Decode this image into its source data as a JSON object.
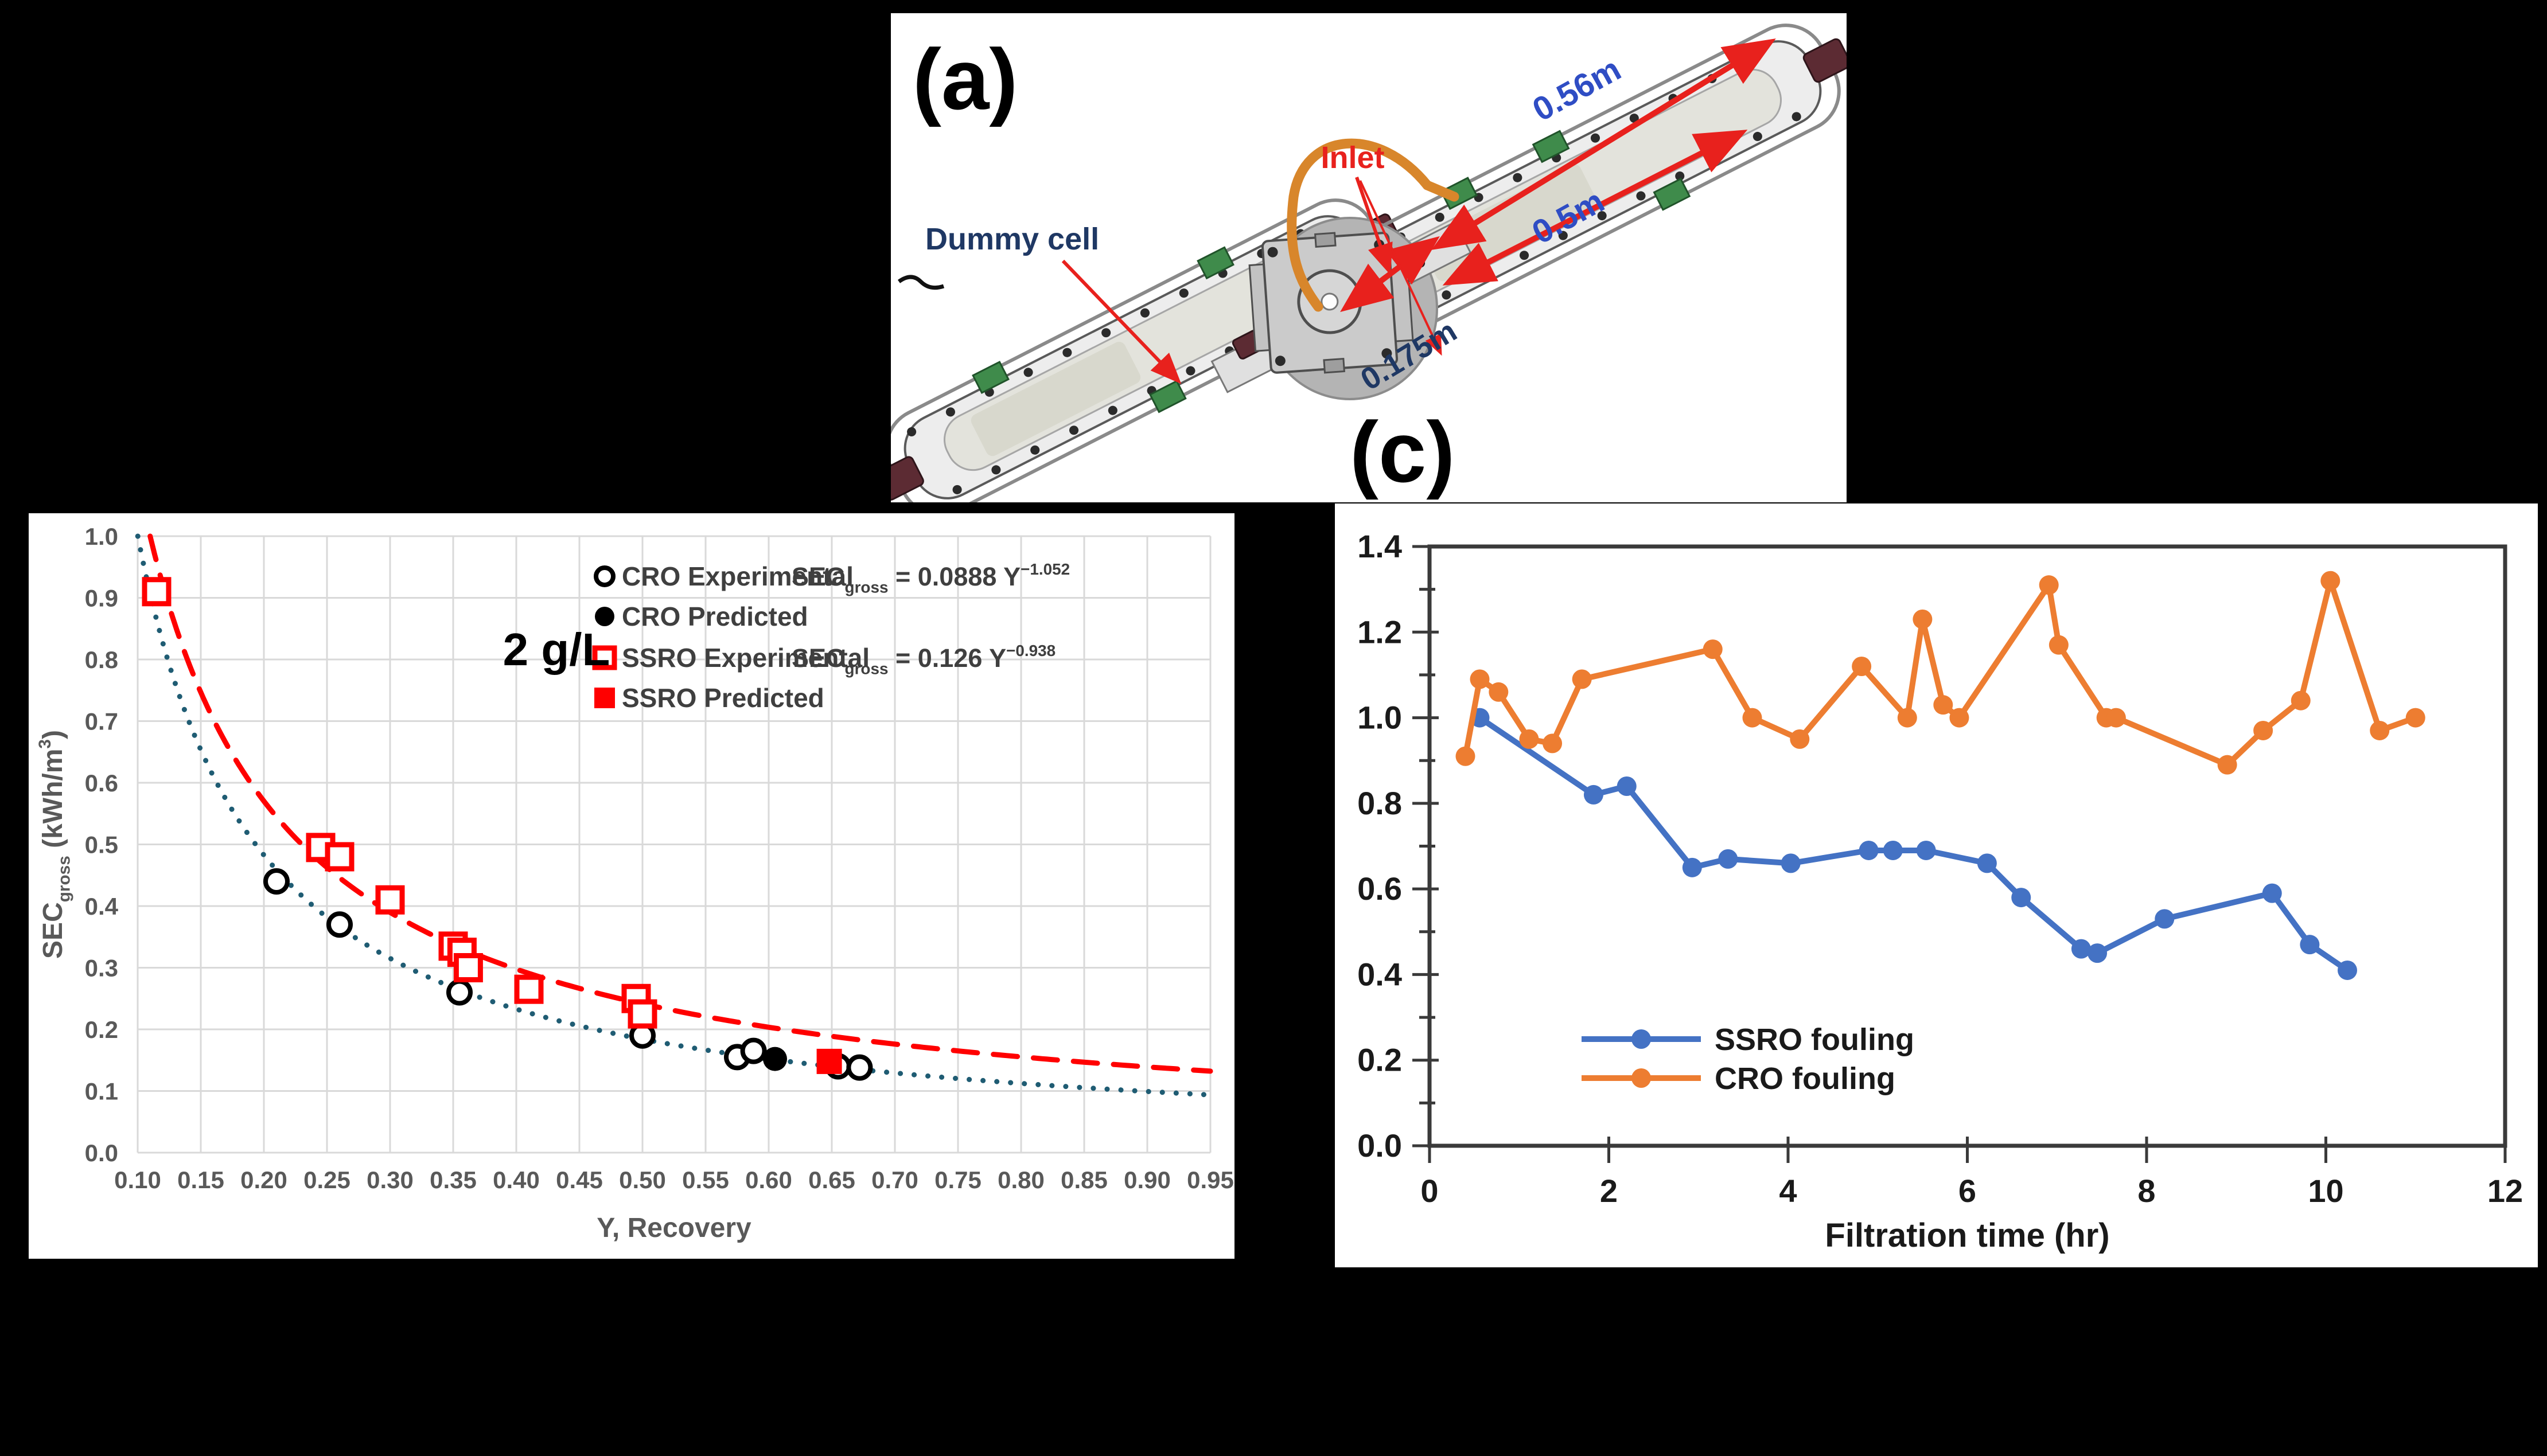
{
  "background": "#000000",
  "panel_a": {
    "label": "(a)",
    "caption_next": "(c)",
    "annotations": {
      "inlet": "Inlet",
      "dummy_cell": "Dummy cell",
      "dim_outer": "0.56m",
      "dim_membrane": "0.5m",
      "dim_radius": "0.175m"
    },
    "colors": {
      "annotation_red": "#E8211D",
      "dim_blue": "#2F4DC4",
      "navy": "#1F3864",
      "tube_orange": "#D8862B"
    }
  },
  "chart_data": [
    {
      "id": "chart_b",
      "type": "scatter",
      "title": "2 g/L",
      "xlabel": "Y, Recovery",
      "ylabel_parts": [
        {
          "t": "SEC"
        },
        {
          "t": "gross",
          "shift": "sub"
        },
        {
          "t": " (kWh/m"
        },
        {
          "t": "3",
          "shift": "sup"
        },
        {
          "t": ")"
        }
      ],
      "xlim": [
        0.1,
        0.95
      ],
      "ylim": [
        0.0,
        1.0
      ],
      "xticks": [
        "0.10",
        "0.15",
        "0.20",
        "0.25",
        "0.30",
        "0.35",
        "0.40",
        "0.45",
        "0.50",
        "0.55",
        "0.60",
        "0.65",
        "0.70",
        "0.75",
        "0.80",
        "0.85",
        "0.90",
        "0.95"
      ],
      "yticks": [
        "0.0",
        "0.1",
        "0.2",
        "0.3",
        "0.4",
        "0.5",
        "0.6",
        "0.7",
        "0.8",
        "0.9",
        "1.0"
      ],
      "grid": true,
      "grid_color": "#D9D9D9",
      "tick_color": "#595959",
      "legend_text_color": "#3F3F3F",
      "series": [
        {
          "name": "CRO Experimental",
          "marker": "circle-open",
          "color": "#000000",
          "points": [
            [
              0.21,
              0.44
            ],
            [
              0.26,
              0.37
            ],
            [
              0.355,
              0.26
            ],
            [
              0.5,
              0.19
            ],
            [
              0.575,
              0.155
            ],
            [
              0.588,
              0.165
            ],
            [
              0.655,
              0.14
            ],
            [
              0.672,
              0.138
            ]
          ]
        },
        {
          "name": "CRO Predicted",
          "marker": "circle-filled",
          "color": "#000000",
          "points": [
            [
              0.605,
              0.152
            ]
          ]
        },
        {
          "name": "SSRO Experimental",
          "marker": "square-open",
          "color": "#FF0000",
          "points": [
            [
              0.115,
              0.91
            ],
            [
              0.245,
              0.495
            ],
            [
              0.26,
              0.48
            ],
            [
              0.3,
              0.41
            ],
            [
              0.35,
              0.335
            ],
            [
              0.357,
              0.325
            ],
            [
              0.362,
              0.3
            ],
            [
              0.41,
              0.265
            ],
            [
              0.495,
              0.25
            ],
            [
              0.5,
              0.225
            ]
          ]
        },
        {
          "name": "SSRO Predicted",
          "marker": "square-filled",
          "color": "#FF0000",
          "points": [
            [
              0.648,
              0.148
            ]
          ]
        }
      ],
      "fits": [
        {
          "name": "CRO fit",
          "coef": 0.0888,
          "exp": -1.052,
          "style": "dotted",
          "color": "#1F5C73",
          "equation": [
            {
              "t": "SEC"
            },
            {
              "t": "gross",
              "shift": "sub"
            },
            {
              "t": " = 0.0888 Y"
            },
            {
              "t": "−1.052",
              "shift": "sup"
            }
          ],
          "legend_row": 0
        },
        {
          "name": "SSRO fit",
          "coef": 0.126,
          "exp": -0.938,
          "style": "dashed",
          "color": "#FF0000",
          "equation": [
            {
              "t": "SEC"
            },
            {
              "t": "gross",
              "shift": "sub"
            },
            {
              "t": " = 0.126 Y"
            },
            {
              "t": "−0.938",
              "shift": "sup"
            }
          ],
          "legend_row": 2
        }
      ],
      "legend_position": "top-right-inside"
    },
    {
      "id": "chart_c",
      "type": "line",
      "xlabel": "Filtration time (hr)",
      "xlim": [
        0,
        12
      ],
      "ylim": [
        0.0,
        1.4
      ],
      "xticks": [
        "0",
        "2",
        "4",
        "6",
        "8",
        "10",
        "12"
      ],
      "yticks": [
        "0.0",
        "0.2",
        "0.4",
        "0.6",
        "0.8",
        "1.0",
        "1.2",
        "1.4"
      ],
      "y_minor_step": 0.1,
      "grid": false,
      "frame_color": "#3A3A3A",
      "tick_color": "#1A1A1A",
      "series": [
        {
          "name": "SSRO fouling",
          "color": "#4472C4",
          "points": [
            [
              0.56,
              1.0
            ],
            [
              1.83,
              0.82
            ],
            [
              2.2,
              0.84
            ],
            [
              2.93,
              0.65
            ],
            [
              3.33,
              0.67
            ],
            [
              4.03,
              0.66
            ],
            [
              4.9,
              0.69
            ],
            [
              5.17,
              0.69
            ],
            [
              5.54,
              0.69
            ],
            [
              6.22,
              0.66
            ],
            [
              6.6,
              0.58
            ],
            [
              7.27,
              0.46
            ],
            [
              7.45,
              0.45
            ],
            [
              8.2,
              0.53
            ],
            [
              9.4,
              0.59
            ],
            [
              9.82,
              0.47
            ],
            [
              10.24,
              0.41
            ]
          ]
        },
        {
          "name": "CRO fouling",
          "color": "#ED7D31",
          "points": [
            [
              0.4,
              0.91
            ],
            [
              0.56,
              1.09
            ],
            [
              0.77,
              1.06
            ],
            [
              1.11,
              0.95
            ],
            [
              1.37,
              0.94
            ],
            [
              1.7,
              1.09
            ],
            [
              3.16,
              1.16
            ],
            [
              3.6,
              1.0
            ],
            [
              4.13,
              0.95
            ],
            [
              4.82,
              1.12
            ],
            [
              5.33,
              1.0
            ],
            [
              5.5,
              1.23
            ],
            [
              5.73,
              1.03
            ],
            [
              5.91,
              1.0
            ],
            [
              6.91,
              1.31
            ],
            [
              7.02,
              1.17
            ],
            [
              7.55,
              1.0
            ],
            [
              7.66,
              1.0
            ],
            [
              8.9,
              0.89
            ],
            [
              9.3,
              0.97
            ],
            [
              9.72,
              1.04
            ],
            [
              10.05,
              1.32
            ],
            [
              10.6,
              0.97
            ],
            [
              11.0,
              1.0
            ]
          ]
        }
      ],
      "legend_position": "bottom-left-inside"
    }
  ]
}
